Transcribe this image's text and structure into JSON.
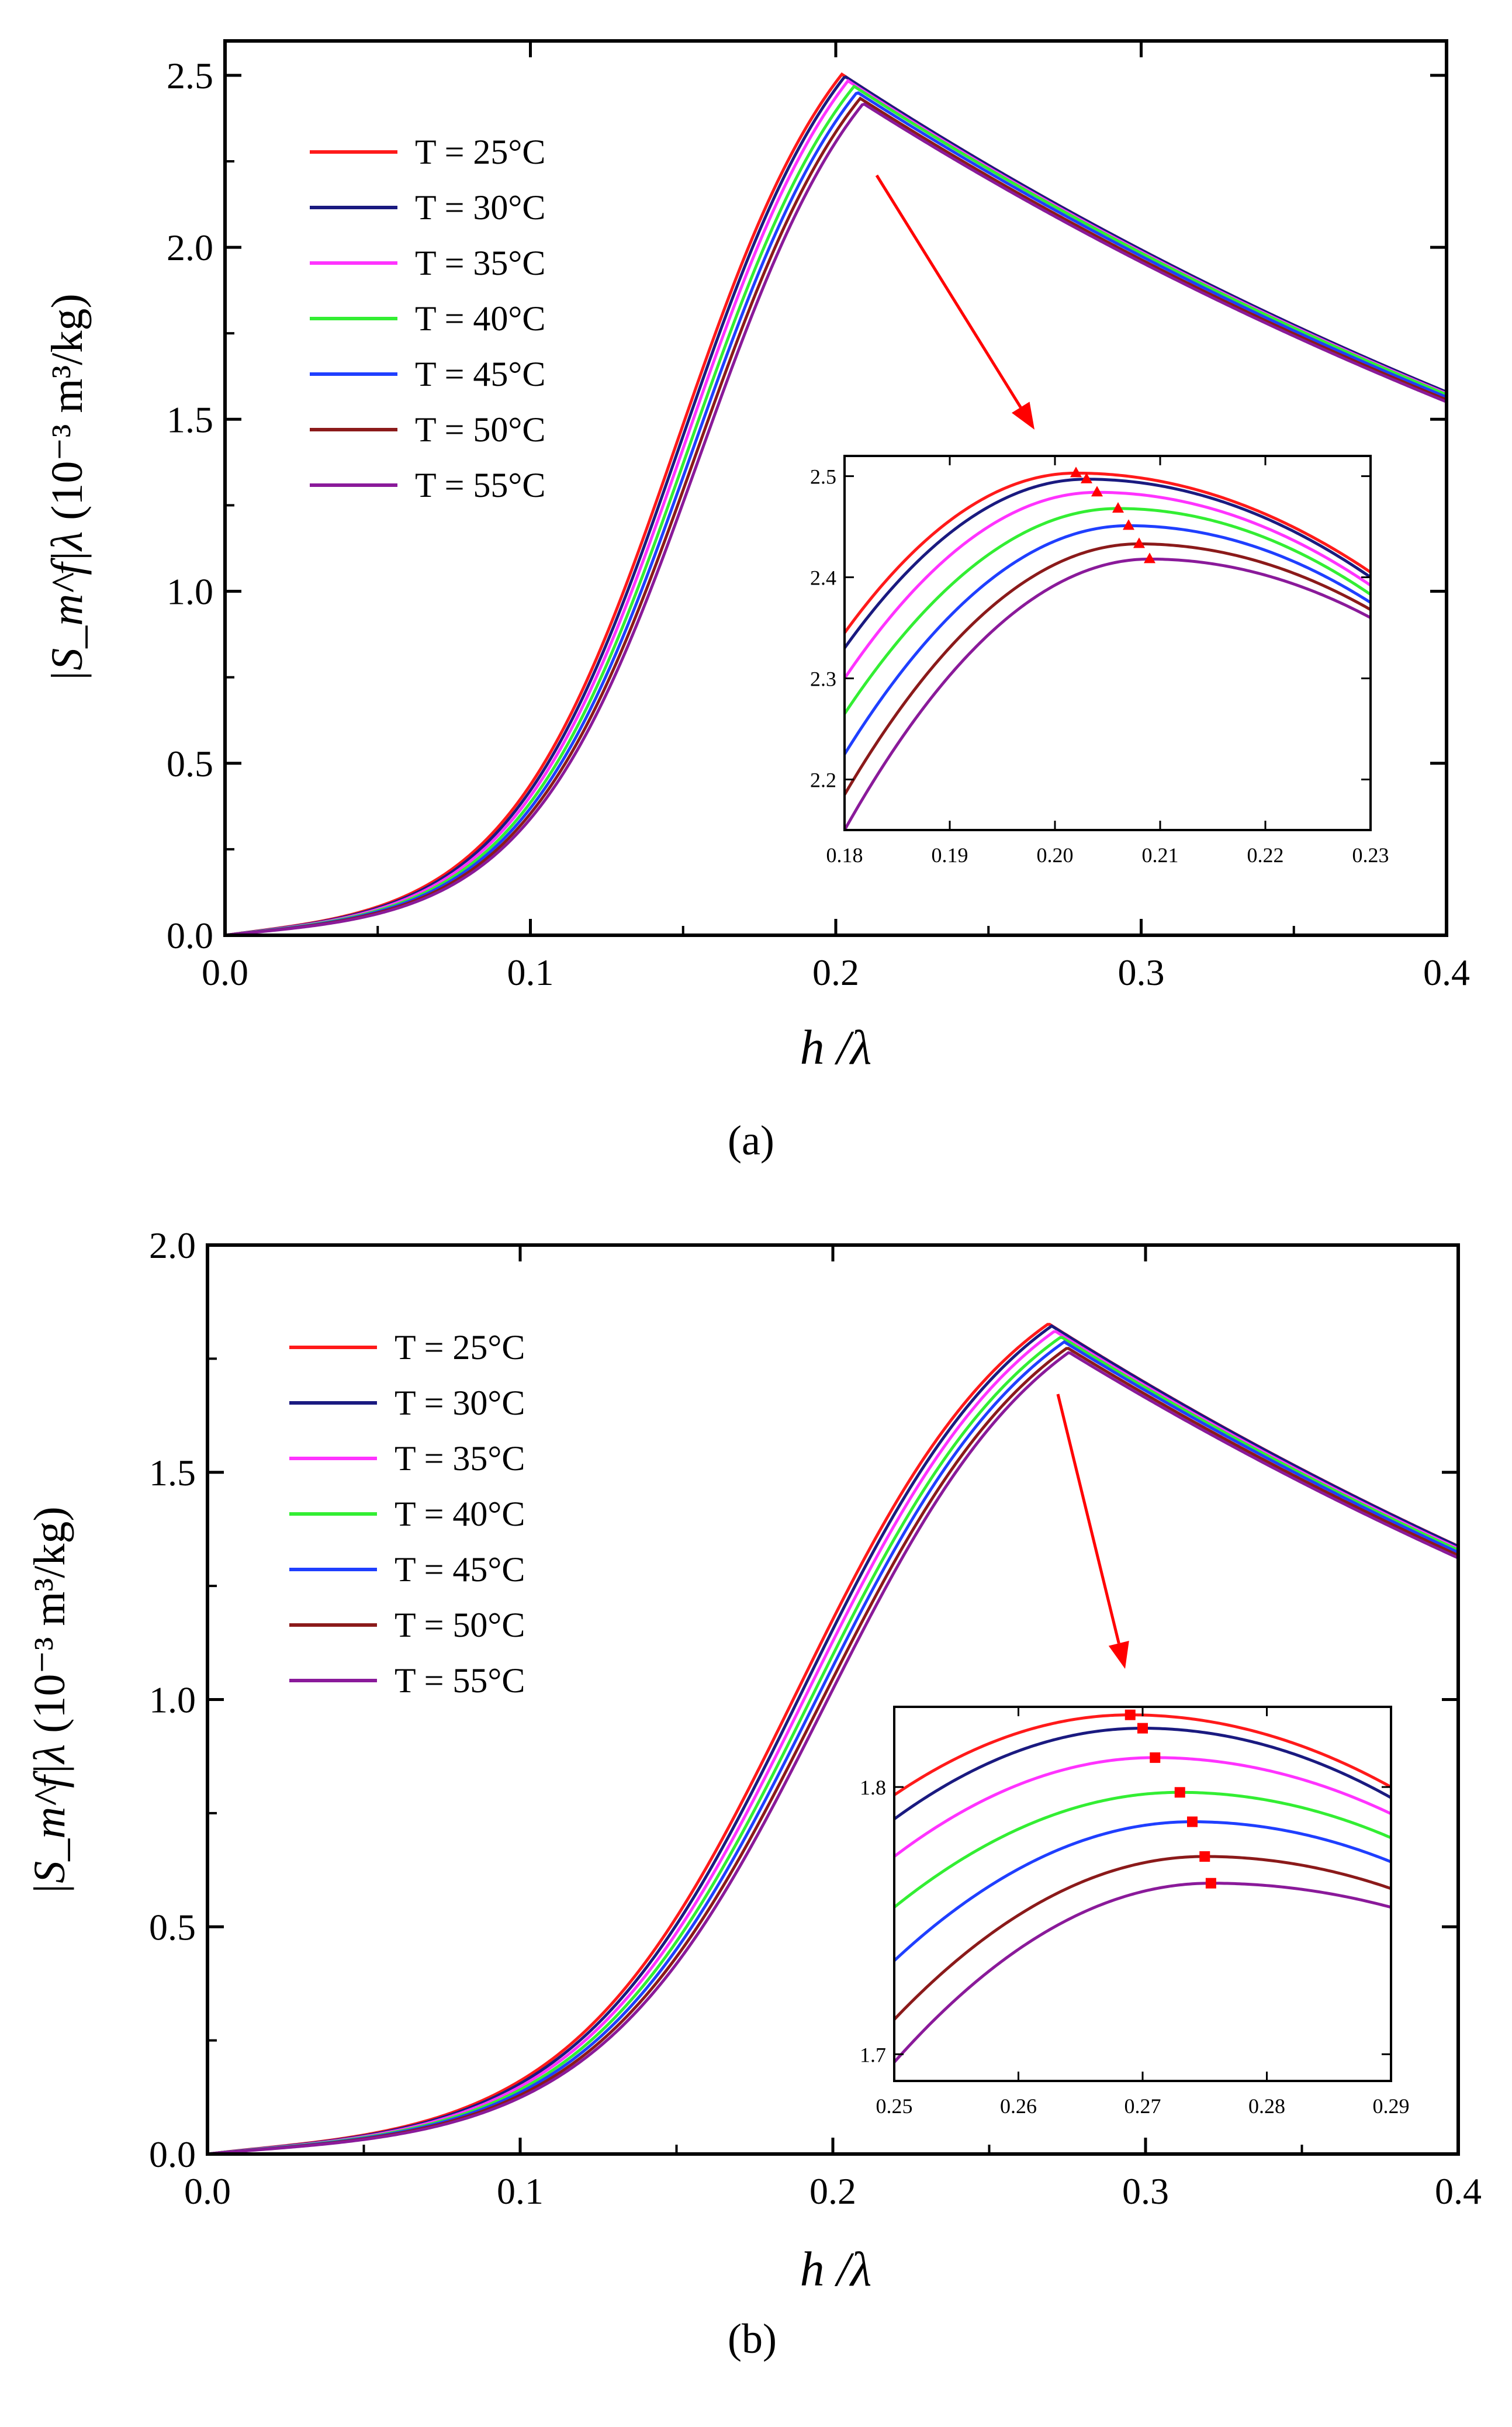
{
  "chart_data": [
    {
      "type": "line",
      "panel": "(a)",
      "ylabel_html": "|S<sub>m</sub><sup>f</sup>|λ",
      "ylabel": "|S_m^f|λ",
      "ylabel_units": "(10⁻³ m³/kg)",
      "xlabel": "h /λ",
      "xlim": [
        0.0,
        0.4
      ],
      "ylim": [
        0.0,
        2.6
      ],
      "xticks": [
        "0.0",
        "0.1",
        "0.2",
        "0.3",
        "0.4"
      ],
      "yticks": [
        "0.0",
        "0.5",
        "1.0",
        "1.5",
        "2.0",
        "2.5"
      ],
      "legend_position": "top-left",
      "curve_shape": {
        "x0": 0.148,
        "x0_step": 0.0012,
        "rise_width": 0.028,
        "decay_tau": 0.43,
        "low_scale": 3.0
      },
      "series": [
        {
          "name": "T = 25°C",
          "color": "#ff1a1a",
          "peak_x": 0.202,
          "peak_y": 2.503
        },
        {
          "name": "T = 30°C",
          "color": "#1a1a80",
          "peak_x": 0.203,
          "peak_y": 2.497
        },
        {
          "name": "T = 35°C",
          "color": "#ff33ff",
          "peak_x": 0.204,
          "peak_y": 2.484
        },
        {
          "name": "T = 40°C",
          "color": "#33ee33",
          "peak_x": 0.206,
          "peak_y": 2.468
        },
        {
          "name": "T = 45°C",
          "color": "#1f3fff",
          "peak_x": 0.207,
          "peak_y": 2.451
        },
        {
          "name": "T = 50°C",
          "color": "#8b1a1a",
          "peak_x": 0.208,
          "peak_y": 2.433
        },
        {
          "name": "T = 55°C",
          "color": "#8a1a9a",
          "peak_x": 0.209,
          "peak_y": 2.418
        }
      ],
      "inset": {
        "xlim": [
          0.18,
          0.23
        ],
        "ylim": [
          2.15,
          2.52
        ],
        "xticks": [
          "0.18",
          "0.19",
          "0.20",
          "0.21",
          "0.22",
          "0.23"
        ],
        "yticks": [
          "2.2",
          "2.3",
          "2.4",
          "2.5"
        ],
        "start_y": [
          2.345,
          2.33,
          2.3,
          2.265,
          2.225,
          2.185,
          2.15
        ],
        "end_y": [
          2.405,
          2.4,
          2.392,
          2.383,
          2.375,
          2.368,
          2.36
        ],
        "marker": "triangle",
        "marker_color": "#ff0000"
      }
    },
    {
      "type": "line",
      "panel": "(b)",
      "ylabel": "|S_m^f|λ",
      "ylabel_units": "(10⁻³ m³/kg)",
      "xlabel": "h /λ",
      "xlim": [
        0.0,
        0.4
      ],
      "ylim": [
        0.0,
        2.0
      ],
      "xticks": [
        "0.0",
        "0.1",
        "0.2",
        "0.3",
        "0.4"
      ],
      "yticks": [
        "0.0",
        "0.5",
        "1.0",
        "1.5",
        "2.0"
      ],
      "legend_position": "top-left",
      "curve_shape": {
        "x0": 0.188,
        "x0_step": 0.0015,
        "rise_width": 0.036,
        "decay_tau": 0.42,
        "low_scale": 3.0
      },
      "series": [
        {
          "name": "T = 25°C",
          "color": "#ff1a1a",
          "peak_x": 0.269,
          "peak_y": 1.827
        },
        {
          "name": "T = 30°C",
          "color": "#1a1a80",
          "peak_x": 0.27,
          "peak_y": 1.822
        },
        {
          "name": "T = 35°C",
          "color": "#ff33ff",
          "peak_x": 0.271,
          "peak_y": 1.811
        },
        {
          "name": "T = 40°C",
          "color": "#33ee33",
          "peak_x": 0.273,
          "peak_y": 1.798
        },
        {
          "name": "T = 45°C",
          "color": "#1f3fff",
          "peak_x": 0.274,
          "peak_y": 1.787
        },
        {
          "name": "T = 50°C",
          "color": "#8b1a1a",
          "peak_x": 0.275,
          "peak_y": 1.774
        },
        {
          "name": "T = 55°C",
          "color": "#8a1a9a",
          "peak_x": 0.2755,
          "peak_y": 1.764
        }
      ],
      "inset": {
        "xlim": [
          0.25,
          0.29
        ],
        "ylim": [
          1.69,
          1.83
        ],
        "xticks": [
          "0.25",
          "0.26",
          "0.27",
          "0.28",
          "0.29"
        ],
        "yticks": [
          "1.7",
          "1.8"
        ],
        "start_y": [
          1.797,
          1.788,
          1.774,
          1.755,
          1.735,
          1.713,
          1.697
        ],
        "end_y": [
          1.8,
          1.796,
          1.79,
          1.781,
          1.772,
          1.762,
          1.755
        ],
        "marker": "square",
        "marker_color": "#ff0000"
      }
    }
  ],
  "panel_labels": {
    "a": "(a)",
    "b": "(b)"
  }
}
